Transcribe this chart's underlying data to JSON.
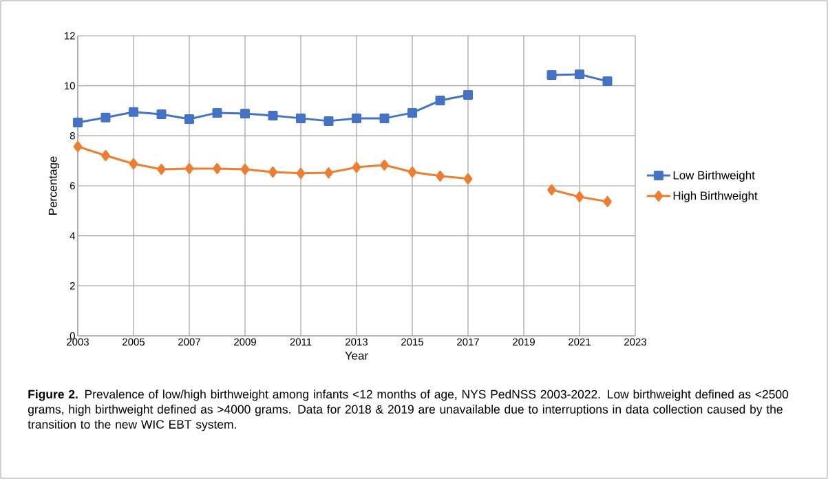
{
  "chart_data": {
    "type": "line",
    "xlabel": "Year",
    "ylabel": "Percentage",
    "x": [
      2003,
      2004,
      2005,
      2006,
      2007,
      2008,
      2009,
      2010,
      2011,
      2012,
      2013,
      2014,
      2015,
      2016,
      2017,
      2018,
      2019,
      2020,
      2021,
      2022
    ],
    "series": [
      {
        "name": "Low Birthweight",
        "color": "#4472c4",
        "marker": "square",
        "values": [
          8.53,
          8.73,
          8.95,
          8.86,
          8.67,
          8.92,
          8.89,
          8.81,
          8.7,
          8.59,
          8.7,
          8.7,
          8.92,
          9.41,
          9.63,
          null,
          null,
          10.43,
          10.46,
          10.18
        ]
      },
      {
        "name": "High Birthweight",
        "color": "#ed7d31",
        "marker": "diamond",
        "values": [
          7.57,
          7.21,
          6.88,
          6.66,
          6.69,
          6.69,
          6.66,
          6.55,
          6.5,
          6.52,
          6.74,
          6.83,
          6.55,
          6.39,
          6.28,
          null,
          null,
          5.84,
          5.56,
          5.37
        ]
      }
    ],
    "xlim": [
      2003,
      2023
    ],
    "xticks": [
      2003,
      2005,
      2007,
      2009,
      2011,
      2013,
      2015,
      2017,
      2019,
      2021,
      2023
    ],
    "ylim": [
      0,
      12
    ],
    "yticks": [
      0,
      2,
      4,
      6,
      8,
      10,
      12
    ],
    "grid": true,
    "legend": "right",
    "line_style": "solid",
    "annotations": [
      "**Figure 2.** Prevalence of low/high birthweight among infants <12 months of age, NYS PedNSS 2003-2022. Low birthweight defined as <2500 grams, high birthweight defined as >4000 grams. Data for 2018 & 2019 are unavailable due to interruptions in data collection caused by the transition to the new WIC EBT system."
    ]
  }
}
